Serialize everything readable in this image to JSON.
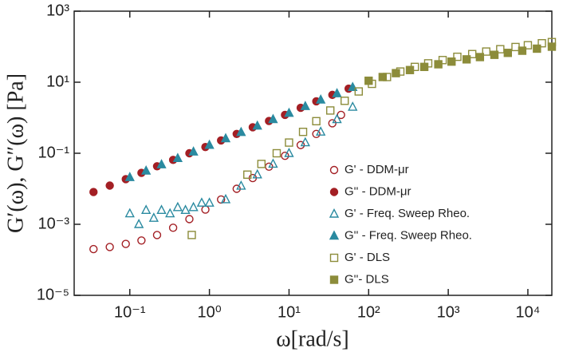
{
  "chart_data": {
    "type": "scatter",
    "log_x": true,
    "log_y": true,
    "x_label": "ω[rad/s]",
    "y_label": "G′(ω), G″(ω) [Pa]",
    "xlim": [
      0.02,
      20000
    ],
    "ylim": [
      1e-05,
      1000
    ],
    "xticks": [
      {
        "value": 0.1,
        "label": "10⁻¹"
      },
      {
        "value": 1,
        "label": "10⁰"
      },
      {
        "value": 10,
        "label": "10¹"
      },
      {
        "value": 100,
        "label": "10²"
      },
      {
        "value": 1000,
        "label": "10³"
      },
      {
        "value": 10000,
        "label": "10⁴"
      }
    ],
    "yticks": [
      {
        "value": 1e-05,
        "label": "10⁻⁵"
      },
      {
        "value": 0.001,
        "label": "10⁻³"
      },
      {
        "value": 0.1,
        "label": "10⁻¹"
      },
      {
        "value": 10,
        "label": "10¹"
      },
      {
        "value": 1000,
        "label": "10³"
      }
    ],
    "series": [
      {
        "name": "G' - DDM-μr",
        "color": "#a31f24",
        "marker": "circle",
        "filled": false,
        "x": [
          0.035,
          0.056,
          0.089,
          0.14,
          0.22,
          0.35,
          0.56,
          0.89,
          1.4,
          2.2,
          3.5,
          5.6,
          8.9,
          14,
          22,
          35,
          45
        ],
        "values": [
          0.0002,
          0.00023,
          0.00028,
          0.00035,
          0.0005,
          0.0008,
          0.0014,
          0.0026,
          0.005,
          0.01,
          0.02,
          0.042,
          0.085,
          0.17,
          0.35,
          0.7,
          1.2
        ]
      },
      {
        "name": "G'' - DDM-μr",
        "color": "#a31f24",
        "marker": "circle",
        "filled": true,
        "x": [
          0.035,
          0.056,
          0.089,
          0.14,
          0.22,
          0.35,
          0.56,
          0.89,
          1.4,
          2.2,
          3.5,
          5.6,
          8.9,
          14,
          22,
          35,
          56
        ],
        "values": [
          0.0081,
          0.0123,
          0.0187,
          0.028,
          0.043,
          0.065,
          0.1,
          0.15,
          0.23,
          0.35,
          0.54,
          0.81,
          1.2,
          1.9,
          2.9,
          4.4,
          6.6
        ]
      },
      {
        "name": "G' - Freq. Sweep Rheo.",
        "color": "#2a8aa0",
        "marker": "triangle",
        "filled": false,
        "x": [
          0.1,
          0.13,
          0.16,
          0.2,
          0.25,
          0.32,
          0.4,
          0.5,
          0.63,
          0.8,
          1,
          1.6,
          2.5,
          4,
          6.3,
          10,
          16,
          25,
          40,
          63
        ],
        "values": [
          0.002,
          0.001,
          0.0025,
          0.0015,
          0.0025,
          0.002,
          0.003,
          0.0025,
          0.003,
          0.004,
          0.004,
          0.005,
          0.012,
          0.025,
          0.05,
          0.1,
          0.2,
          0.4,
          0.9,
          2
        ]
      },
      {
        "name": "G'' - Freq. Sweep Rheo.",
        "color": "#2a8aa0",
        "marker": "triangle",
        "filled": true,
        "x": [
          0.1,
          0.16,
          0.25,
          0.4,
          0.63,
          1,
          1.6,
          2.5,
          4,
          6.3,
          10,
          16,
          25,
          40,
          63
        ],
        "values": [
          0.021,
          0.032,
          0.048,
          0.072,
          0.11,
          0.17,
          0.26,
          0.39,
          0.59,
          0.9,
          1.35,
          2.1,
          3.2,
          4.8,
          7.2
        ]
      },
      {
        "name": "G' - DLS",
        "color": "#8c8c3a",
        "marker": "square",
        "filled": false,
        "x": [
          0.6,
          3,
          4.5,
          7,
          10,
          15,
          22,
          33,
          50,
          75,
          110,
          170,
          250,
          380,
          560,
          850,
          1300,
          2000,
          3000,
          4500,
          7000,
          10000,
          15000,
          20000
        ],
        "values": [
          0.0005,
          0.025,
          0.05,
          0.1,
          0.2,
          0.4,
          0.8,
          1.6,
          3,
          5.5,
          9,
          14,
          20,
          27,
          34,
          42,
          52,
          62,
          73,
          85,
          98,
          110,
          125,
          135
        ]
      },
      {
        "name": "G''- DLS",
        "color": "#8c8c3a",
        "marker": "square",
        "filled": true,
        "x": [
          100,
          150,
          220,
          330,
          500,
          750,
          1100,
          1700,
          2500,
          3800,
          5600,
          8500,
          13000,
          20000
        ],
        "values": [
          11,
          14,
          18,
          22,
          27,
          32,
          38,
          44,
          51,
          59,
          67,
          77,
          88,
          100
        ]
      }
    ]
  }
}
